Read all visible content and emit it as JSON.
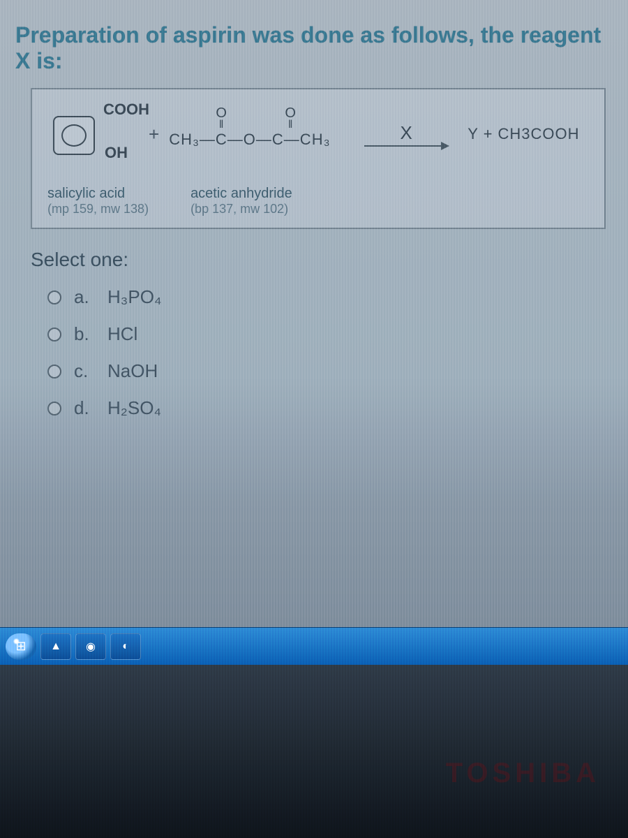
{
  "question": {
    "text": "Preparation of aspirin was done as follows, the reagent X is:",
    "color": "#3a7a93",
    "fontsize": 32
  },
  "reaction": {
    "reactant1": {
      "top_label": "COOH",
      "bottom_label": "OH",
      "name": "salicylic acid",
      "detail": "(mp 159, mw 138)"
    },
    "plus": "+",
    "reactant2": {
      "formula_main": "CH₃—C—O—C—CH₃",
      "doubleO": "O",
      "name": "acetic anhydride",
      "detail": "(bp 137, mw 102)"
    },
    "arrow_label": "X",
    "product": "Y  + CH3COOH",
    "box_border": "#758592"
  },
  "select_label": "Select one:",
  "options": [
    {
      "letter": "a.",
      "text": "H₃PO₄"
    },
    {
      "letter": "b.",
      "text": "HCl"
    },
    {
      "letter": "c.",
      "text": "NaOH"
    },
    {
      "letter": "d.",
      "text": "H₂SO₄"
    }
  ],
  "taskbar": {
    "icons": [
      "⊞",
      "▲",
      "◉",
      "◐"
    ]
  },
  "brand": "TOSHIBA"
}
